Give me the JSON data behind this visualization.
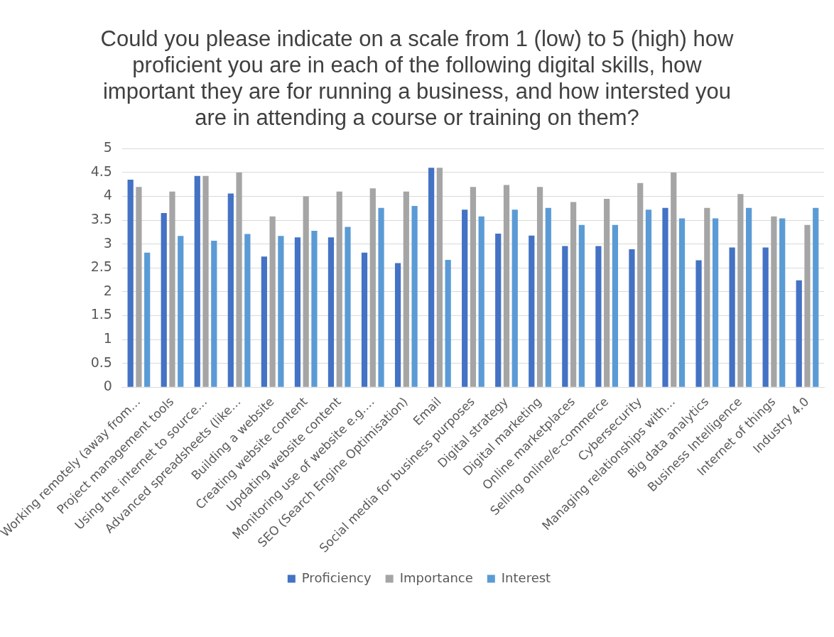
{
  "chart_data": {
    "type": "bar",
    "title": "Could you please indicate on a scale from 1 (low) to 5 (high) how proficient you are in each of the following digital skills, how important they are for running a business, and how intersted you are in attending a course or training on them?",
    "categories": [
      "Working remotely (away from…",
      "Project management tools",
      "Using the internet to source…",
      "Advanced spreadsheets (like…",
      "Building a website",
      "Creating website content",
      "Updating website content",
      "Monitoring use of website e.g.…",
      "SEO (Search Engine Optimisation)",
      "Email",
      "Social media for business purposes",
      "Digital strategy",
      "Digital marketing",
      "Online marketplaces",
      "Selling online/e-commerce",
      "Cybersecurity",
      "Managing relationships with…",
      "Big data analytics",
      "Business Intelligence",
      "Internet of things",
      "Industry 4.0"
    ],
    "series": [
      {
        "name": "Proficiency",
        "color": "#4472c4",
        "values": [
          4.35,
          3.65,
          4.43,
          4.06,
          2.74,
          3.14,
          3.14,
          2.82,
          2.6,
          4.6,
          3.72,
          3.22,
          3.18,
          2.96,
          2.96,
          2.89,
          3.76,
          2.66,
          2.93,
          2.93,
          2.24
        ]
      },
      {
        "name": "Importance",
        "color": "#a5a5a5",
        "values": [
          4.2,
          4.1,
          4.43,
          4.5,
          3.58,
          4.0,
          4.1,
          4.17,
          4.1,
          4.6,
          4.2,
          4.24,
          4.2,
          3.88,
          3.95,
          4.28,
          4.5,
          3.76,
          4.05,
          3.58,
          3.4
        ]
      },
      {
        "name": "Interest",
        "color": "#5b9bd5",
        "values": [
          2.82,
          3.17,
          3.07,
          3.21,
          3.17,
          3.28,
          3.36,
          3.76,
          3.8,
          2.67,
          3.58,
          3.72,
          3.76,
          3.4,
          3.4,
          3.72,
          3.54,
          3.54,
          3.76,
          3.54,
          3.76
        ]
      }
    ],
    "ylim": [
      0,
      5
    ],
    "yticks": [
      0,
      0.5,
      1,
      1.5,
      2,
      2.5,
      3,
      3.5,
      4,
      4.5,
      5
    ],
    "grid": "y",
    "legend": "bottom"
  }
}
